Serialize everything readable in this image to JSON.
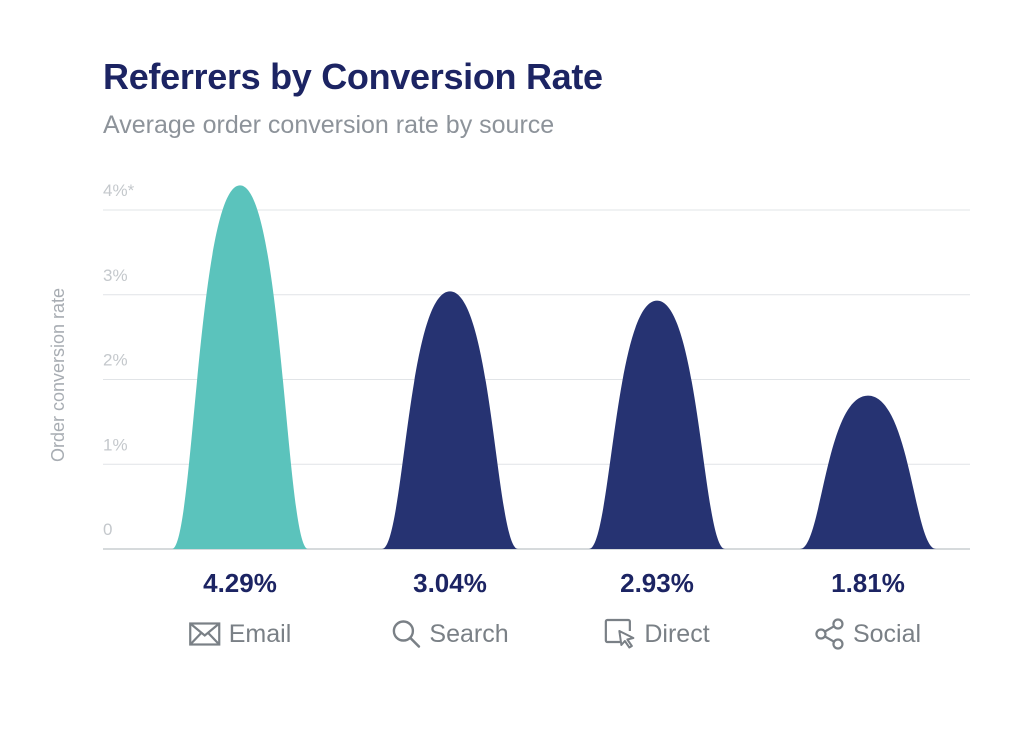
{
  "header": {
    "title": "Referrers by Conversion Rate",
    "subtitle": "Average order conversion rate by source"
  },
  "colors": {
    "highlight": "#5bc3bc",
    "default": "#263372",
    "grid": "#e1e4e7",
    "axis": "#c9cdd1"
  },
  "chart_data": {
    "type": "area",
    "title": "Referrers by Conversion Rate",
    "subtitle": "Average order conversion rate by source",
    "xlabel": "",
    "ylabel": "Order conversion rate",
    "categories": [
      "Email",
      "Search",
      "Direct",
      "Social"
    ],
    "values": [
      4.29,
      3.04,
      2.93,
      1.81
    ],
    "value_labels": [
      "4.29%",
      "3.04%",
      "2.93%",
      "1.81%"
    ],
    "category_icons": [
      "envelope-icon",
      "search-icon",
      "cursor-click-icon",
      "share-icon"
    ],
    "ylim": [
      0,
      4
    ],
    "yticks": [
      {
        "value": 0,
        "label": "0"
      },
      {
        "value": 1,
        "label": "1%"
      },
      {
        "value": 2,
        "label": "2%"
      },
      {
        "value": 3,
        "label": "3%"
      },
      {
        "value": 4,
        "label": "4%*"
      }
    ],
    "grid": true,
    "legend": "none",
    "highlight_index": 0
  }
}
